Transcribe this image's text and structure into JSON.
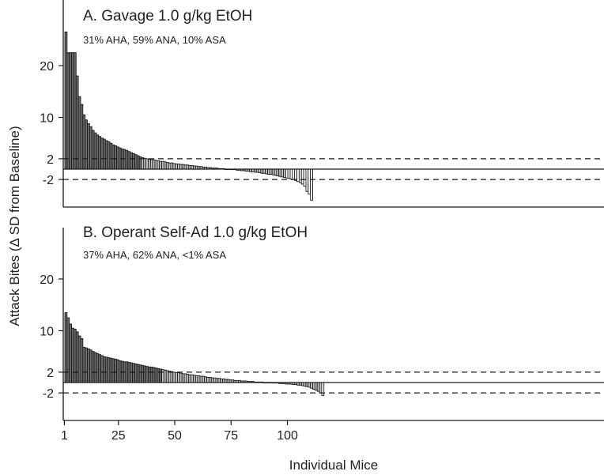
{
  "chart_data": {
    "type": "bar",
    "xlabel": "Individual Mice",
    "ylabel": "Attack Bites (Δ SD from Baseline)",
    "x_ticks": [
      1,
      25,
      50,
      75,
      100
    ],
    "y_ticks": [
      20,
      10,
      2,
      -2
    ],
    "reference_lines": [
      2,
      0,
      -2
    ],
    "colors": {
      "aha": "#6b6b6b",
      "ana": "#c4c4c4",
      "asa": "#ffffff",
      "edge": "#1a1a1a"
    },
    "panels": [
      {
        "title": "A. Gavage 1.0 g/kg EtOH",
        "subtitle": "31% AHA, 59% ANA, 10% ASA",
        "ylim": [
          -6,
          30
        ],
        "values": [
          26.5,
          22.5,
          22.5,
          22.5,
          22.5,
          18,
          14,
          12.5,
          10.5,
          9.5,
          8.8,
          8.2,
          7.5,
          7,
          6.6,
          6.3,
          6.0,
          5.8,
          5.5,
          5.3,
          5.0,
          4.7,
          4.5,
          4.3,
          4.1,
          3.9,
          3.8,
          3.6,
          3.4,
          3.2,
          3.0,
          2.8,
          2.6,
          2.4,
          2.2,
          2.1,
          2.0,
          1.9,
          1.8,
          1.8,
          1.7,
          1.6,
          1.5,
          1.5,
          1.4,
          1.3,
          1.2,
          1.2,
          1.1,
          1.0,
          1.0,
          0.9,
          0.9,
          0.8,
          0.8,
          0.7,
          0.7,
          0.6,
          0.6,
          0.5,
          0.5,
          0.4,
          0.4,
          0.3,
          0.3,
          0.2,
          0.2,
          0.2,
          0.1,
          0.1,
          0.1,
          0.0,
          0.0,
          0.0,
          -0.1,
          -0.1,
          -0.2,
          -0.2,
          -0.3,
          -0.3,
          -0.4,
          -0.4,
          -0.5,
          -0.5,
          -0.6,
          -0.6,
          -0.7,
          -0.8,
          -0.8,
          -0.9,
          -1.0,
          -1.0,
          -1.1,
          -1.2,
          -1.3,
          -1.4,
          -1.5,
          -1.6,
          -1.7,
          -1.8,
          -1.9,
          -2.0,
          -2.2,
          -2.4,
          -2.6,
          -2.9,
          -3.3,
          -4.3,
          -4.8,
          -6.0
        ],
        "groups": {
          "aha": 34,
          "ana": 64
        }
      },
      {
        "title": "B. Operant Self-Ad 1.0 g/kg EtOH",
        "subtitle": "37% AHA, 62% ANA, <1% ASA",
        "ylim": [
          -6,
          30
        ],
        "values": [
          13.5,
          12.5,
          11.3,
          10.5,
          10.3,
          9.8,
          9.0,
          8.5,
          6.8,
          6.7,
          6.5,
          6.3,
          6.0,
          5.8,
          5.6,
          5.4,
          5.2,
          5.0,
          4.9,
          4.8,
          4.7,
          4.6,
          4.5,
          4.4,
          4.2,
          4.1,
          4.0,
          4.0,
          3.9,
          3.8,
          3.7,
          3.6,
          3.5,
          3.4,
          3.3,
          3.2,
          3.1,
          3.0,
          3.0,
          2.9,
          2.8,
          2.7,
          2.6,
          2.5,
          2.4,
          2.3,
          2.2,
          2.1,
          2.0,
          1.9,
          1.9,
          1.8,
          1.7,
          1.7,
          1.6,
          1.5,
          1.5,
          1.4,
          1.3,
          1.3,
          1.2,
          1.2,
          1.1,
          1.0,
          1.0,
          0.9,
          0.9,
          0.8,
          0.8,
          0.7,
          0.7,
          0.6,
          0.6,
          0.5,
          0.5,
          0.4,
          0.4,
          0.4,
          0.3,
          0.3,
          0.3,
          0.2,
          0.2,
          0.2,
          0.1,
          0.1,
          0.1,
          0.1,
          0.0,
          0.0,
          0.0,
          0.0,
          -0.1,
          -0.1,
          -0.1,
          -0.2,
          -0.2,
          -0.2,
          -0.3,
          -0.3,
          -0.3,
          -0.4,
          -0.4,
          -0.5,
          -0.5,
          -0.6,
          -0.7,
          -0.8,
          -0.9,
          -1.1,
          -1.3,
          -1.5,
          -1.7,
          -2.0,
          -2.5
        ],
        "groups": {
          "aha": 43,
          "ana": 71
        }
      }
    ]
  }
}
